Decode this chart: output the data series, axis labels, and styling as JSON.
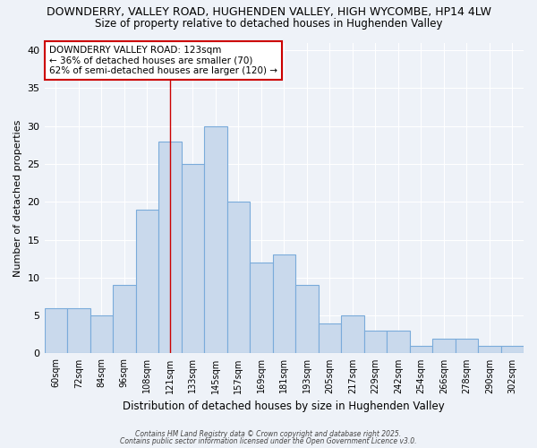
{
  "title_line1": "DOWNDERRY, VALLEY ROAD, HUGHENDEN VALLEY, HIGH WYCOMBE, HP14 4LW",
  "title_line2": "Size of property relative to detached houses in Hughenden Valley",
  "xlabel": "Distribution of detached houses by size in Hughenden Valley",
  "ylabel": "Number of detached properties",
  "categories": [
    "60sqm",
    "72sqm",
    "84sqm",
    "96sqm",
    "108sqm",
    "121sqm",
    "133sqm",
    "145sqm",
    "157sqm",
    "169sqm",
    "181sqm",
    "193sqm",
    "205sqm",
    "217sqm",
    "229sqm",
    "242sqm",
    "254sqm",
    "266sqm",
    "278sqm",
    "290sqm",
    "302sqm"
  ],
  "values": [
    6,
    6,
    5,
    9,
    19,
    28,
    25,
    30,
    20,
    12,
    13,
    9,
    4,
    5,
    3,
    3,
    1,
    2,
    2,
    1,
    1
  ],
  "bar_color": "#c9d9ec",
  "bar_edge_color": "#7aabda",
  "vline_x_index": 5,
  "vline_color": "#cc0000",
  "annotation_text": "DOWNDERRY VALLEY ROAD: 123sqm\n← 36% of detached houses are smaller (70)\n62% of semi-detached houses are larger (120) →",
  "annotation_box_color": "white",
  "annotation_box_edge": "#cc0000",
  "ylim": [
    0,
    41
  ],
  "yticks": [
    0,
    5,
    10,
    15,
    20,
    25,
    30,
    35,
    40
  ],
  "bg_color": "#eef2f8",
  "grid_color": "#ffffff",
  "footer_line1": "Contains HM Land Registry data © Crown copyright and database right 2025.",
  "footer_line2": "Contains public sector information licensed under the Open Government Licence v3.0."
}
